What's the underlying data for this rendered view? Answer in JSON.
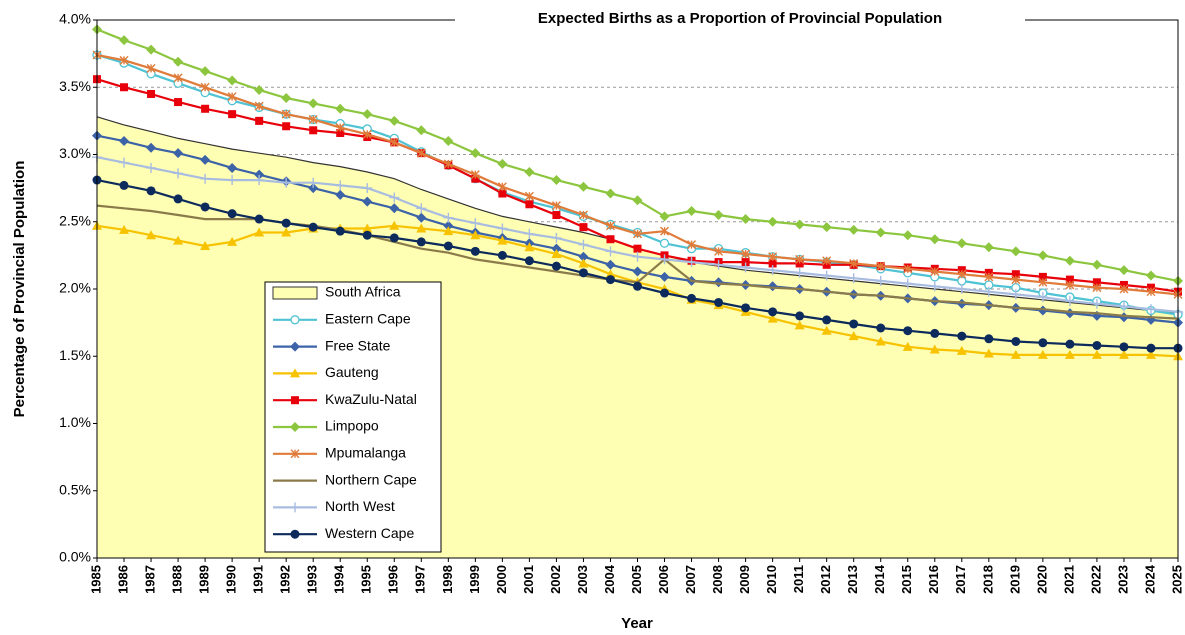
{
  "chart_data": {
    "type": "line",
    "title": "Expected Births  as a Proportion  of Provincial Population",
    "x_label": "Year",
    "y_label": "Percentage of Provincial Population",
    "x": [
      1985,
      1986,
      1987,
      1988,
      1989,
      1990,
      1991,
      1992,
      1993,
      1994,
      1995,
      1996,
      1997,
      1998,
      1999,
      2000,
      2001,
      2002,
      2003,
      2004,
      2005,
      2006,
      2007,
      2008,
      2009,
      2010,
      2011,
      2012,
      2013,
      2014,
      2015,
      2016,
      2017,
      2018,
      2019,
      2020,
      2021,
      2022,
      2023,
      2024,
      2025
    ],
    "xlim": [
      1985,
      2025
    ],
    "ylim": [
      0,
      4
    ],
    "yticks": [
      {
        "value": 0,
        "label": "0.0%"
      },
      {
        "value": 0.5,
        "label": "0.5%"
      },
      {
        "value": 1,
        "label": "1.0%"
      },
      {
        "value": 1.5,
        "label": "1.5%"
      },
      {
        "value": 2,
        "label": "2.0%"
      },
      {
        "value": 2.5,
        "label": "2.5%"
      },
      {
        "value": 3,
        "label": "3.0%"
      },
      {
        "value": 3.5,
        "label": "3.5%"
      },
      {
        "value": 4,
        "label": "4.0%"
      }
    ],
    "grid": true,
    "legend": true,
    "series": [
      {
        "name": "South Africa",
        "color": "#ffffb3",
        "marker": "area",
        "values": [
          3.28,
          3.22,
          3.17,
          3.12,
          3.08,
          3.04,
          3.01,
          2.98,
          2.94,
          2.91,
          2.87,
          2.82,
          2.74,
          2.67,
          2.6,
          2.54,
          2.5,
          2.46,
          2.42,
          2.37,
          2.3,
          2.25,
          2.2,
          2.17,
          2.14,
          2.12,
          2.1,
          2.08,
          2.06,
          2.04,
          2.02,
          2.0,
          1.98,
          1.96,
          1.94,
          1.92,
          1.9,
          1.88,
          1.86,
          1.84,
          1.82
        ]
      },
      {
        "name": "Eastern Cape",
        "color": "#4fc3d3",
        "marker": "circle-open",
        "values": [
          3.74,
          3.68,
          3.6,
          3.53,
          3.46,
          3.4,
          3.35,
          3.3,
          3.26,
          3.23,
          3.19,
          3.12,
          3.02,
          2.92,
          2.82,
          2.72,
          2.65,
          2.6,
          2.54,
          2.48,
          2.42,
          2.34,
          2.3,
          2.3,
          2.27,
          2.24,
          2.22,
          2.2,
          2.18,
          2.15,
          2.12,
          2.09,
          2.06,
          2.03,
          2.01,
          1.97,
          1.94,
          1.91,
          1.88,
          1.84,
          1.81
        ]
      },
      {
        "name": "Free State",
        "color": "#3c62a8",
        "marker": "diamond",
        "values": [
          3.14,
          3.1,
          3.05,
          3.01,
          2.96,
          2.9,
          2.85,
          2.8,
          2.75,
          2.7,
          2.65,
          2.6,
          2.53,
          2.47,
          2.42,
          2.38,
          2.34,
          2.3,
          2.24,
          2.18,
          2.13,
          2.09,
          2.06,
          2.05,
          2.03,
          2.02,
          2.0,
          1.98,
          1.96,
          1.95,
          1.93,
          1.91,
          1.89,
          1.88,
          1.86,
          1.84,
          1.82,
          1.8,
          1.79,
          1.77,
          1.75
        ]
      },
      {
        "name": "Gauteng",
        "color": "#f7c200",
        "marker": "triangle",
        "values": [
          2.47,
          2.44,
          2.4,
          2.36,
          2.32,
          2.35,
          2.42,
          2.42,
          2.45,
          2.45,
          2.45,
          2.47,
          2.45,
          2.43,
          2.4,
          2.36,
          2.31,
          2.26,
          2.19,
          2.11,
          2.05,
          2.0,
          1.92,
          1.88,
          1.83,
          1.78,
          1.73,
          1.69,
          1.65,
          1.61,
          1.57,
          1.55,
          1.54,
          1.52,
          1.51,
          1.51,
          1.51,
          1.51,
          1.51,
          1.51,
          1.5
        ]
      },
      {
        "name": "KwaZulu-Natal",
        "color": "#e8000b",
        "marker": "square",
        "values": [
          3.56,
          3.5,
          3.45,
          3.39,
          3.34,
          3.3,
          3.25,
          3.21,
          3.18,
          3.16,
          3.13,
          3.09,
          3.01,
          2.92,
          2.82,
          2.71,
          2.63,
          2.55,
          2.46,
          2.37,
          2.3,
          2.25,
          2.21,
          2.2,
          2.2,
          2.19,
          2.19,
          2.18,
          2.18,
          2.17,
          2.16,
          2.15,
          2.14,
          2.12,
          2.11,
          2.09,
          2.07,
          2.05,
          2.03,
          2.01,
          1.98
        ]
      },
      {
        "name": "Limpopo",
        "color": "#8cc63e",
        "marker": "diamond",
        "values": [
          3.93,
          3.85,
          3.78,
          3.69,
          3.62,
          3.55,
          3.48,
          3.42,
          3.38,
          3.34,
          3.3,
          3.25,
          3.18,
          3.1,
          3.01,
          2.93,
          2.87,
          2.81,
          2.76,
          2.71,
          2.66,
          2.54,
          2.58,
          2.55,
          2.52,
          2.5,
          2.48,
          2.46,
          2.44,
          2.42,
          2.4,
          2.37,
          2.34,
          2.31,
          2.28,
          2.25,
          2.21,
          2.18,
          2.14,
          2.1,
          2.06
        ]
      },
      {
        "name": "Mpumalanga",
        "color": "#e07b3a",
        "marker": "star",
        "values": [
          3.74,
          3.7,
          3.64,
          3.57,
          3.5,
          3.43,
          3.36,
          3.3,
          3.26,
          3.2,
          3.15,
          3.09,
          3.01,
          2.93,
          2.85,
          2.76,
          2.69,
          2.62,
          2.55,
          2.47,
          2.41,
          2.43,
          2.33,
          2.28,
          2.26,
          2.24,
          2.22,
          2.21,
          2.19,
          2.17,
          2.15,
          2.13,
          2.11,
          2.09,
          2.07,
          2.05,
          2.03,
          2.01,
          2.0,
          1.98,
          1.96
        ]
      },
      {
        "name": "Northern Cape",
        "color": "#8b7b4b",
        "marker": "none",
        "values": [
          2.62,
          2.6,
          2.58,
          2.55,
          2.52,
          2.52,
          2.52,
          2.49,
          2.47,
          2.44,
          2.4,
          2.35,
          2.3,
          2.27,
          2.22,
          2.19,
          2.16,
          2.13,
          2.1,
          2.07,
          2.05,
          2.22,
          2.06,
          2.04,
          2.03,
          2.01,
          2.0,
          1.98,
          1.96,
          1.95,
          1.93,
          1.91,
          1.9,
          1.88,
          1.86,
          1.85,
          1.83,
          1.82,
          1.8,
          1.79,
          1.78
        ]
      },
      {
        "name": "North West",
        "color": "#a8bce0",
        "marker": "plus",
        "values": [
          2.98,
          2.94,
          2.9,
          2.86,
          2.82,
          2.81,
          2.81,
          2.79,
          2.79,
          2.77,
          2.75,
          2.68,
          2.6,
          2.53,
          2.49,
          2.45,
          2.41,
          2.38,
          2.33,
          2.28,
          2.24,
          2.22,
          2.2,
          2.18,
          2.16,
          2.14,
          2.12,
          2.1,
          2.08,
          2.06,
          2.04,
          2.02,
          2.0,
          1.98,
          1.96,
          1.94,
          1.91,
          1.89,
          1.87,
          1.85,
          1.83
        ]
      },
      {
        "name": "Western Cape",
        "color": "#0c2b5c",
        "marker": "circle",
        "values": [
          2.81,
          2.77,
          2.73,
          2.67,
          2.61,
          2.56,
          2.52,
          2.49,
          2.46,
          2.43,
          2.4,
          2.38,
          2.35,
          2.32,
          2.28,
          2.25,
          2.21,
          2.17,
          2.12,
          2.07,
          2.02,
          1.97,
          1.93,
          1.9,
          1.86,
          1.83,
          1.8,
          1.77,
          1.74,
          1.71,
          1.69,
          1.67,
          1.65,
          1.63,
          1.61,
          1.6,
          1.59,
          1.58,
          1.57,
          1.56,
          1.56
        ]
      }
    ]
  }
}
